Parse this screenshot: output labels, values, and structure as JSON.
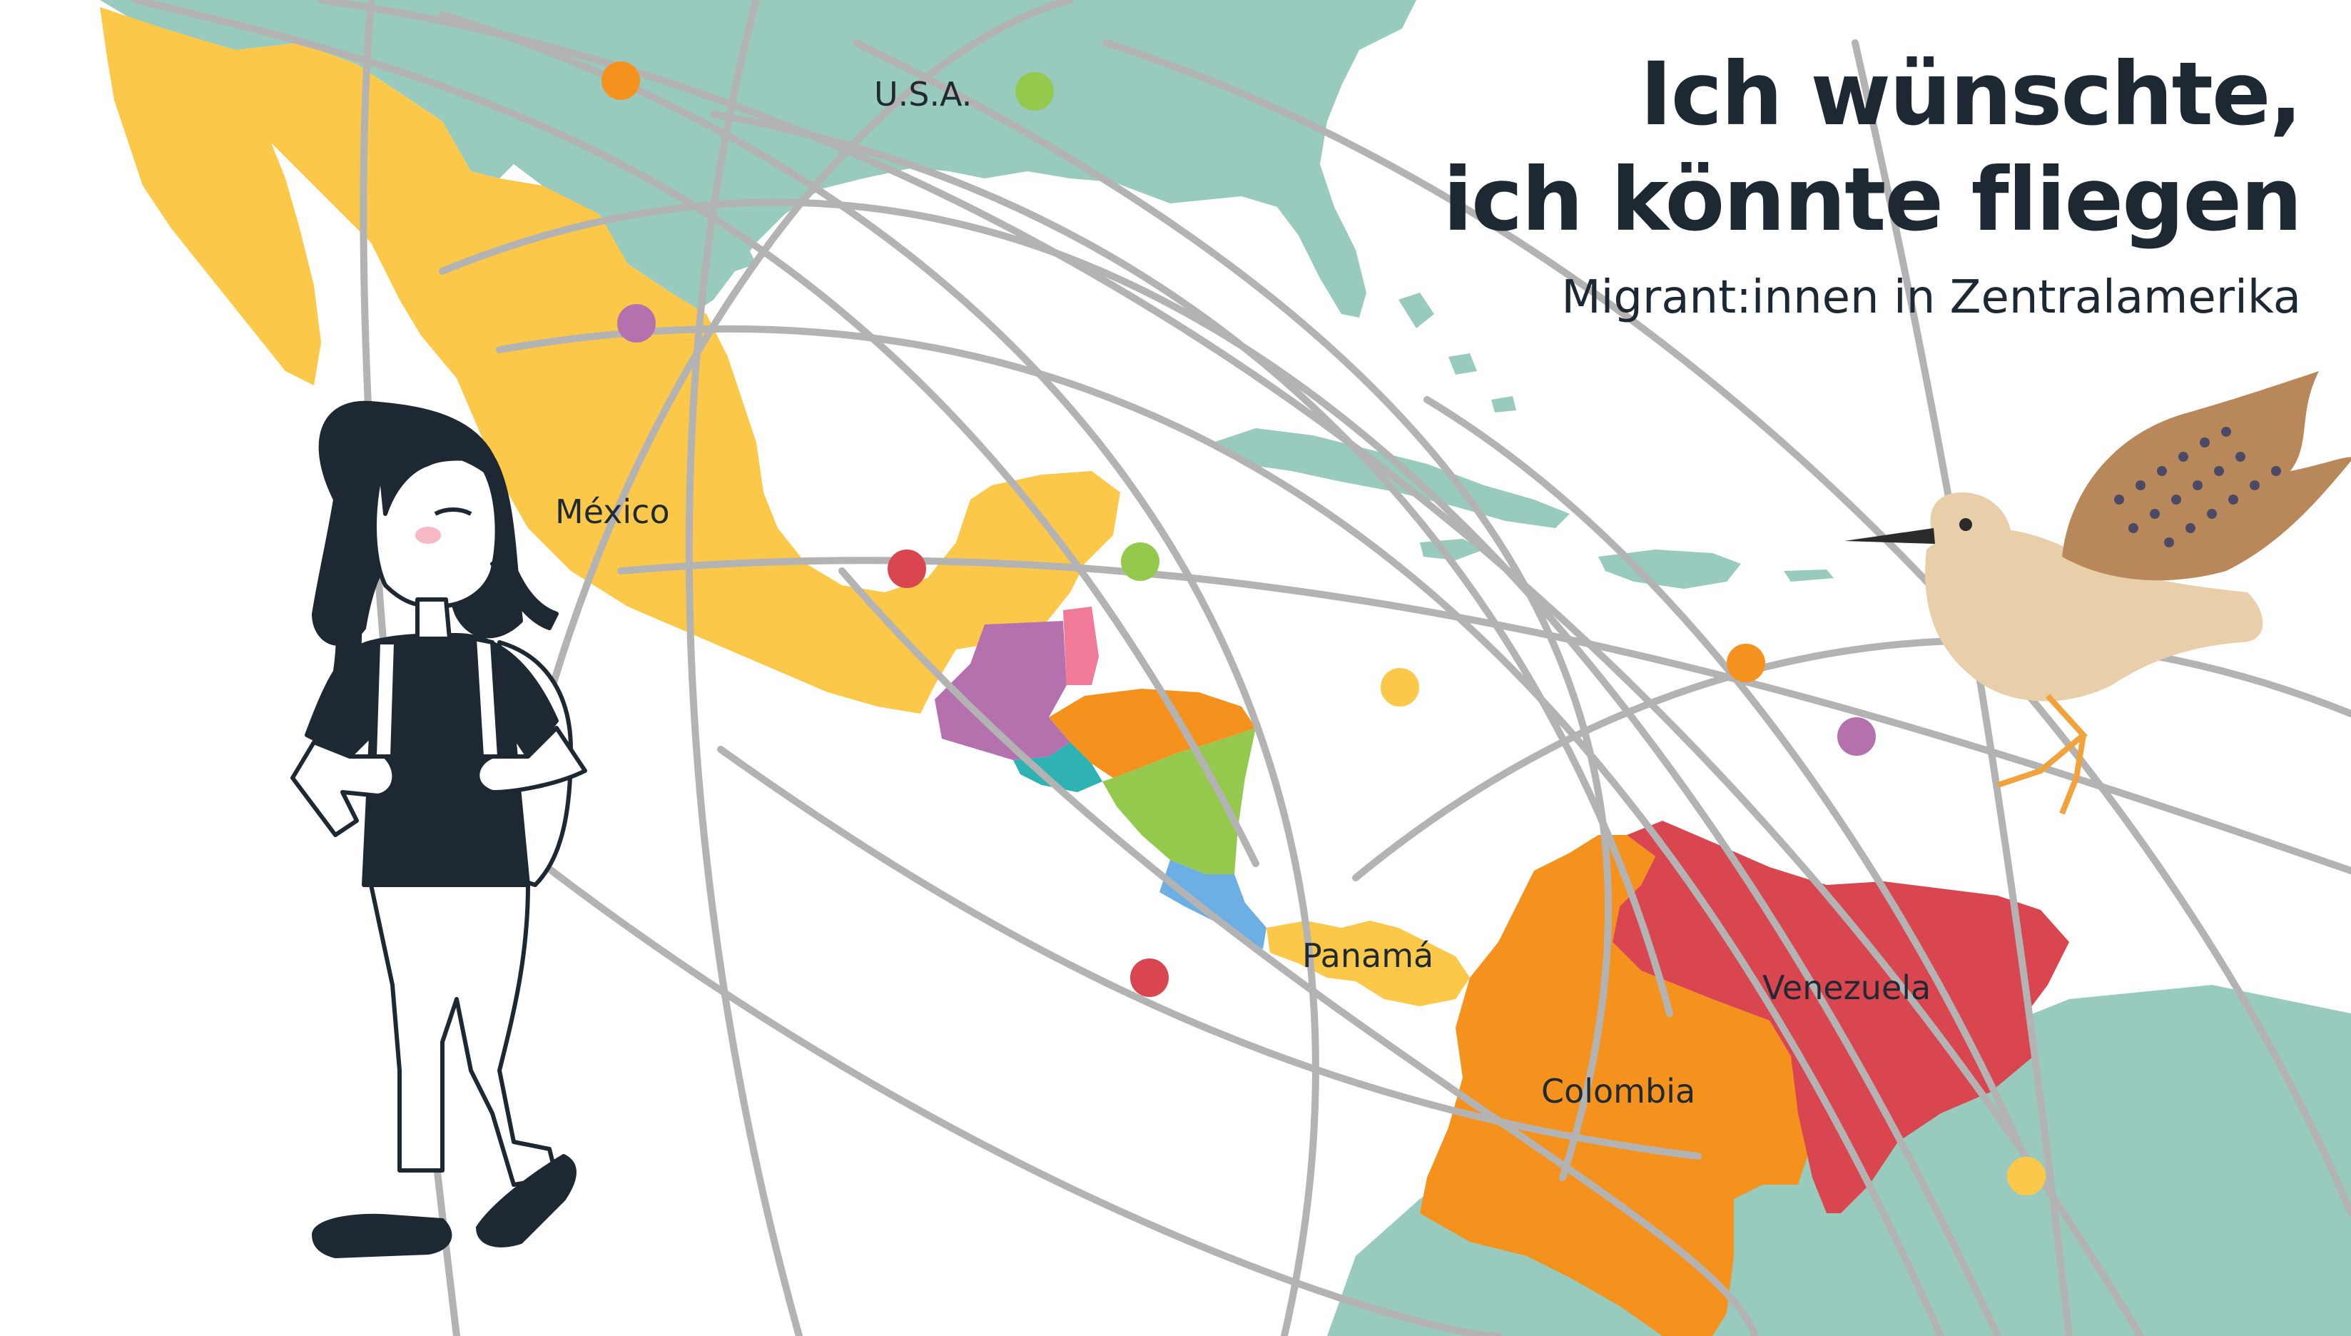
{
  "title": {
    "line1": "Ich wünschte,",
    "line2": "ich könnte fliegen"
  },
  "subtitle": "Migrant:innen in Zentralamerika",
  "map_labels": {
    "usa": "U.S.A.",
    "mexico": "México",
    "panama": "Panamá",
    "venezuela": "Venezuela",
    "colombia": "Colombia"
  },
  "colors": {
    "land_north": "#98cbbd",
    "mexico": "#fcc84a",
    "guatemala": "#b571ad",
    "belize": "#f07a98",
    "honduras": "#f5921e",
    "el_salvador": "#2fb2b2",
    "nicaragua": "#94c94d",
    "costa_rica": "#6cafe4",
    "panama": "#fcc84a",
    "colombia": "#f5921e",
    "venezuela": "#d9464f",
    "caribbean_islands": "#98cbbd",
    "flight_path": "#b3b3b3",
    "text": "#1e2833"
  },
  "illustrations": {
    "girl": "girl-with-backpack",
    "bird": "flying-shorebird"
  }
}
